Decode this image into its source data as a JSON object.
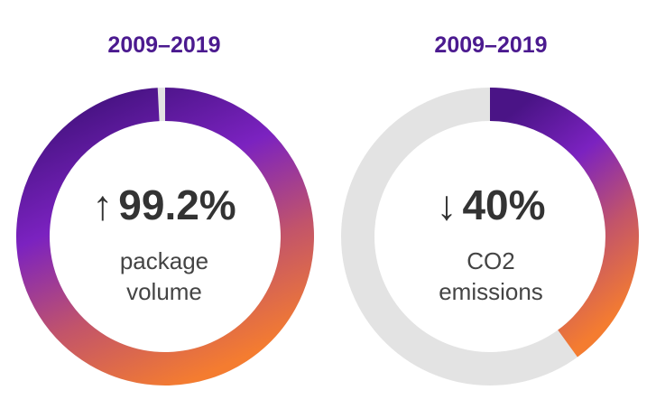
{
  "chart_data": [
    {
      "type": "pie",
      "variant": "donut",
      "title": "2009–2019",
      "value_percent": 99.2,
      "value_label": "99.2%",
      "direction": "up",
      "arrow_icon": "arrow-up-icon",
      "label_lines": [
        "package",
        "volume"
      ],
      "track_color": "#e3e3e3",
      "gradient_colors": [
        "#4a1486",
        "#7b22c0",
        "#c2546a",
        "#f47c30"
      ]
    },
    {
      "type": "pie",
      "variant": "donut",
      "title": "2009–2019",
      "value_percent": 40,
      "value_label": "40%",
      "direction": "down",
      "arrow_icon": "arrow-down-icon",
      "label_lines": [
        "CO2",
        "emissions"
      ],
      "track_color": "#e3e3e3",
      "gradient_colors": [
        "#4a1486",
        "#7b22c0",
        "#c2546a",
        "#f47c30"
      ]
    }
  ],
  "arrows": {
    "up": "↑",
    "down": "↓"
  }
}
